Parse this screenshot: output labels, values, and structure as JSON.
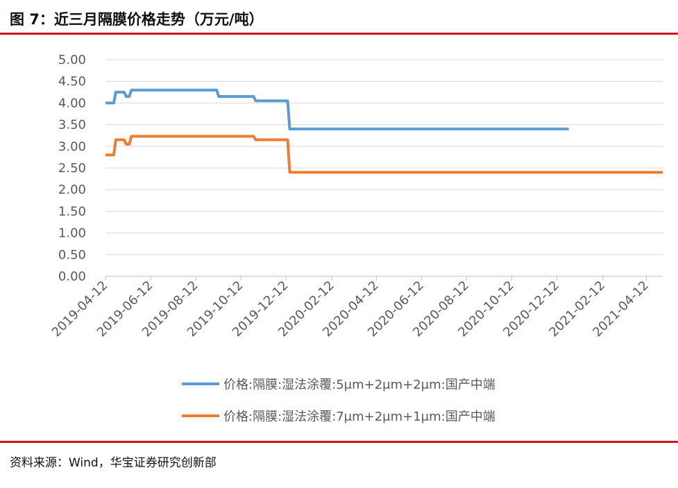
{
  "figure": {
    "title": "图 7：近三月隔膜价格走势（万元/吨）",
    "source": "资料来源：Wind，华宝证券研究创新部"
  },
  "colors": {
    "rule": "#c8161d",
    "series1": "#5b9bd5",
    "series2": "#ed7d31",
    "axis": "#bfbfbf",
    "grid": "#d9d9d9"
  },
  "chart_data": {
    "type": "line",
    "title": "",
    "xlabel": "",
    "ylabel": "",
    "ylim": [
      0,
      5
    ],
    "y_ticks": [
      "0.00",
      "0.50",
      "1.00",
      "1.50",
      "2.00",
      "2.50",
      "3.00",
      "3.50",
      "4.00",
      "4.50",
      "5.00"
    ],
    "xlim": [
      "2019-04-12",
      "2021-05-04"
    ],
    "x_ticks": [
      "2019-04-12",
      "2019-06-12",
      "2019-08-12",
      "2019-10-12",
      "2019-12-12",
      "2020-02-12",
      "2020-04-12",
      "2020-06-12",
      "2020-08-12",
      "2020-10-12",
      "2020-12-12",
      "2021-02-12",
      "2021-04-12"
    ],
    "grid": "horizontal",
    "legend_position": "bottom",
    "series": [
      {
        "name": "价格:隔膜:湿法涂覆:5μm+2μm+2μm:国产中端",
        "step": true,
        "points": [
          [
            "2019-04-12",
            4.0
          ],
          [
            "2019-04-26",
            4.25
          ],
          [
            "2019-05-10",
            4.15
          ],
          [
            "2019-05-17",
            4.3
          ],
          [
            "2019-09-12",
            4.15
          ],
          [
            "2019-11-01",
            4.05
          ],
          [
            "2019-12-17",
            3.4
          ],
          [
            "2020-12-28",
            3.4
          ]
        ]
      },
      {
        "name": "价格:隔膜:湿法涂覆:7μm+2μm+1μm:国产中端",
        "step": true,
        "points": [
          [
            "2019-04-12",
            2.8
          ],
          [
            "2019-04-26",
            3.15
          ],
          [
            "2019-05-10",
            3.05
          ],
          [
            "2019-05-17",
            3.23
          ],
          [
            "2019-11-01",
            3.15
          ],
          [
            "2019-12-17",
            2.4
          ],
          [
            "2021-05-04",
            2.4
          ]
        ]
      }
    ]
  }
}
